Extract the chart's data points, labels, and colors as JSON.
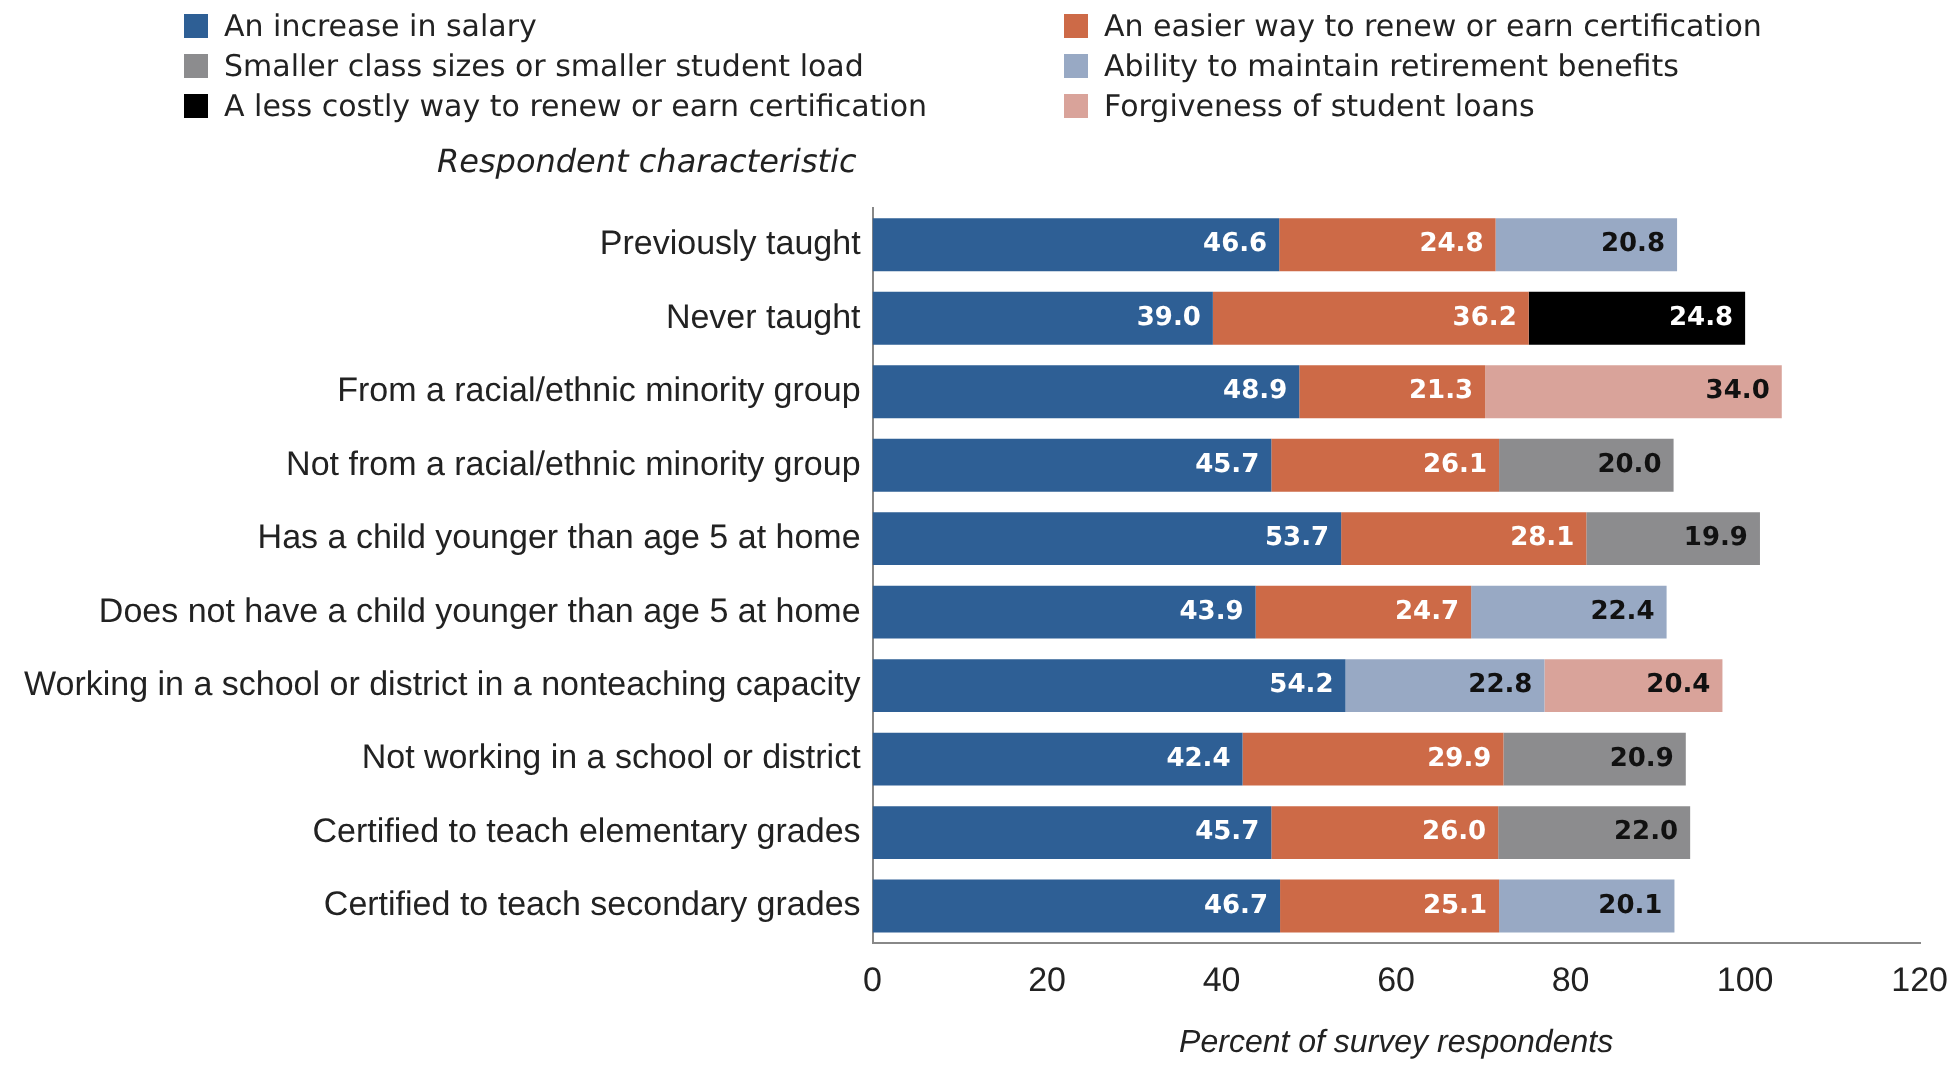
{
  "chart_data": {
    "type": "bar",
    "orientation": "horizontal",
    "stacked": true,
    "legend": "top",
    "grid": false,
    "ylabel": "Respondent characteristic",
    "xlabel": "Percent of survey respondents",
    "categories": [
      "Previously taught",
      "Never taught",
      "From a racial/ethnic minority group",
      "Not from a racial/ethnic minority group",
      "Has a child younger than age 5 at home",
      "Does not have a child younger than age 5 at home",
      "Working in a school or district in a nonteaching capacity",
      "Not working in a school or district",
      "Certified to teach elementary grades",
      "Certified to teach secondary grades"
    ],
    "xlim": [
      0,
      120
    ],
    "xticks": [
      0,
      20,
      40,
      60,
      80,
      100,
      120
    ],
    "series": [
      {
        "name": "An increase in salary",
        "color": "#2e5f95",
        "values": [
          46.6,
          39.0,
          48.9,
          45.7,
          53.7,
          43.9,
          54.2,
          42.4,
          45.7,
          46.7
        ],
        "value_labels": [
          "46.6",
          "39.0",
          "48.9",
          "45.7",
          "53.7",
          "43.9",
          "54.2",
          "42.4",
          "45.7",
          "46.7"
        ]
      },
      {
        "name": "An easier way to renew or earn certification",
        "color": "#cd6a47",
        "values": [
          24.8,
          36.2,
          21.3,
          26.1,
          28.1,
          24.7,
          null,
          29.9,
          26.0,
          25.1
        ],
        "value_labels": [
          "24.8",
          "36.2",
          "21.3",
          "26.1",
          "28.1",
          "24.7",
          null,
          "29.9",
          "26.0",
          "25.1"
        ]
      },
      {
        "name": "Smaller class sizes or smaller student load",
        "color": "#8c8c8e",
        "values": [
          null,
          null,
          null,
          20.0,
          19.9,
          null,
          null,
          20.9,
          22.0,
          null
        ],
        "value_labels": [
          null,
          null,
          null,
          "20.0",
          "19.9",
          null,
          null,
          "20.9",
          "22.0",
          null
        ]
      },
      {
        "name": "Ability to maintain retirement benefits",
        "color": "#98a9c4",
        "values": [
          20.8,
          null,
          null,
          null,
          null,
          22.4,
          22.8,
          null,
          null,
          20.1
        ],
        "value_labels": [
          "20.8",
          null,
          null,
          null,
          null,
          "22.4",
          "22.8",
          null,
          null,
          "20.1"
        ]
      },
      {
        "name": "A less costly way to renew or earn certification",
        "color": "#000000",
        "values": [
          null,
          24.8,
          null,
          null,
          null,
          null,
          null,
          null,
          null,
          null
        ],
        "value_labels": [
          null,
          "24.8",
          null,
          null,
          null,
          null,
          null,
          null,
          null,
          null
        ]
      },
      {
        "name": "Forgiveness of student loans",
        "color": "#d9a39a",
        "values": [
          null,
          null,
          34.0,
          null,
          null,
          null,
          20.4,
          null,
          null,
          null
        ],
        "value_labels": [
          null,
          null,
          "34.0",
          null,
          null,
          null,
          "20.4",
          null,
          null,
          null
        ]
      }
    ]
  }
}
